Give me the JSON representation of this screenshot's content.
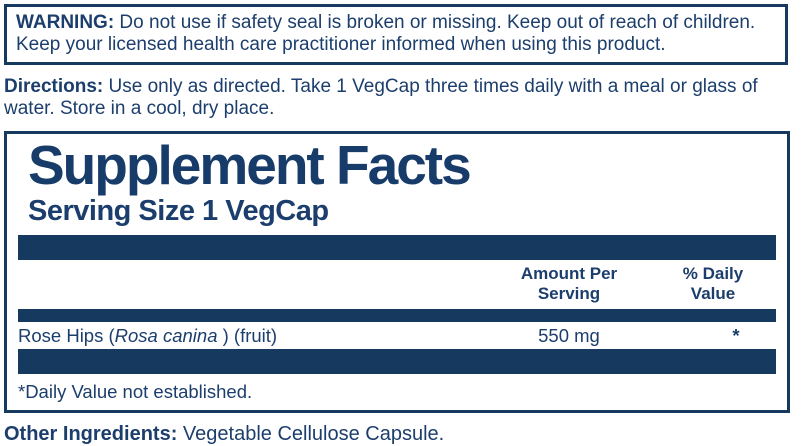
{
  "colors": {
    "navy_bar": "#15395f",
    "text_navy": "#1c3e6c",
    "background": "#ffffff"
  },
  "warning": {
    "label": "WARNING:",
    "text": " Do not use if safety seal is broken or missing. Keep out of reach of children. Keep your licensed health care practitioner informed when using this product."
  },
  "directions": {
    "label": "Directions:",
    "text": " Use only as directed. Take 1 VegCap three times daily with a meal or glass of water. Store in a cool, dry place."
  },
  "supplement_facts": {
    "title": "Supplement Facts",
    "serving_size": "Serving Size 1 VegCap",
    "columns": {
      "amount_header": "Amount Per\nServing",
      "daily_value_header": "% Daily\nValue"
    },
    "rows": [
      {
        "name_prefix": "Rose Hips (",
        "name_italic": "Rosa canina",
        "name_suffix": " ) (fruit)",
        "amount": "550 mg",
        "daily_value": "*"
      }
    ],
    "footnote": "*Daily Value not established."
  },
  "other_ingredients": {
    "label": "Other Ingredients:",
    "text": " Vegetable Cellulose Capsule."
  }
}
